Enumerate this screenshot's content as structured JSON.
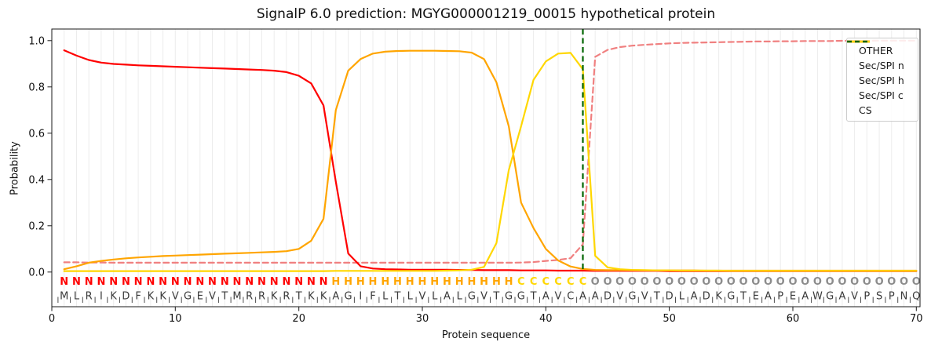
{
  "title": "SignalP 6.0 prediction: MGYG000001219_00015 hypothetical protein",
  "legend": {
    "items": [
      {
        "label": "OTHER",
        "color": "#f08080",
        "dash": true
      },
      {
        "label": "Sec/SPI n",
        "color": "#ff0000",
        "dash": false
      },
      {
        "label": "Sec/SPI h",
        "color": "#ffa500",
        "dash": false
      },
      {
        "label": "Sec/SPI c",
        "color": "#ffd700",
        "dash": false
      },
      {
        "label": "CS",
        "color": "#006400",
        "dash": true
      }
    ]
  },
  "chart_data": {
    "type": "line",
    "title": "SignalP 6.0 prediction: MGYG000001219_00015 hypothetical protein",
    "xlabel": "Protein sequence",
    "ylabel": "Probability",
    "xlim": [
      0,
      70.3
    ],
    "ylim": [
      -0.15,
      1.05
    ],
    "xticks": [
      0,
      10,
      20,
      30,
      40,
      50,
      60,
      70
    ],
    "ytick_labels": [
      "0.0",
      "0.2",
      "0.4",
      "0.6",
      "0.8",
      "1.0"
    ],
    "yticks": [
      0.0,
      0.2,
      0.4,
      0.6,
      0.8,
      1.0
    ],
    "grid": "vertical-per-residue",
    "legend_position": "upper right",
    "x": "positions 1..70",
    "series": [
      {
        "name": "OTHER",
        "color": "#f08080",
        "style": "dashed",
        "values": [
          0.042,
          0.042,
          0.041,
          0.041,
          0.04,
          0.04,
          0.04,
          0.04,
          0.04,
          0.04,
          0.04,
          0.04,
          0.04,
          0.04,
          0.04,
          0.04,
          0.04,
          0.04,
          0.04,
          0.04,
          0.04,
          0.04,
          0.04,
          0.04,
          0.04,
          0.04,
          0.04,
          0.04,
          0.04,
          0.04,
          0.04,
          0.04,
          0.04,
          0.04,
          0.04,
          0.04,
          0.04,
          0.041,
          0.043,
          0.048,
          0.052,
          0.06,
          0.12,
          0.93,
          0.96,
          0.972,
          0.978,
          0.982,
          0.985,
          0.988,
          0.99,
          0.991,
          0.992,
          0.993,
          0.994,
          0.995,
          0.996,
          0.996,
          0.997,
          0.997,
          0.998,
          0.998,
          0.998,
          0.999,
          0.999,
          0.999,
          1.0,
          1.0,
          1.0,
          1.0
        ]
      },
      {
        "name": "Sec/SPI n",
        "color": "#ff0000",
        "style": "solid",
        "values": [
          0.958,
          0.935,
          0.916,
          0.905,
          0.899,
          0.896,
          0.893,
          0.891,
          0.889,
          0.887,
          0.885,
          0.883,
          0.881,
          0.879,
          0.877,
          0.875,
          0.873,
          0.87,
          0.864,
          0.848,
          0.815,
          0.72,
          0.39,
          0.08,
          0.025,
          0.015,
          0.012,
          0.011,
          0.01,
          0.01,
          0.01,
          0.01,
          0.009,
          0.009,
          0.008,
          0.008,
          0.008,
          0.007,
          0.007,
          0.007,
          0.006,
          0.006,
          0.006,
          0.005,
          0.005,
          0.005,
          0.005,
          0.005,
          0.005,
          0.004,
          0.004,
          0.004,
          0.004,
          0.004,
          0.004,
          0.004,
          0.004,
          0.004,
          0.004,
          0.004,
          0.004,
          0.004,
          0.004,
          0.004,
          0.004,
          0.004,
          0.004,
          0.004,
          0.004,
          0.004
        ]
      },
      {
        "name": "Sec/SPI h",
        "color": "#ffa500",
        "style": "solid",
        "values": [
          0.012,
          0.025,
          0.04,
          0.048,
          0.054,
          0.059,
          0.063,
          0.066,
          0.069,
          0.071,
          0.073,
          0.075,
          0.077,
          0.079,
          0.081,
          0.083,
          0.085,
          0.087,
          0.09,
          0.1,
          0.135,
          0.23,
          0.7,
          0.87,
          0.92,
          0.944,
          0.952,
          0.955,
          0.956,
          0.956,
          0.956,
          0.955,
          0.954,
          0.948,
          0.92,
          0.82,
          0.63,
          0.3,
          0.19,
          0.1,
          0.05,
          0.024,
          0.013,
          0.009,
          0.008,
          0.008,
          0.008,
          0.007,
          0.007,
          0.007,
          0.007,
          0.007,
          0.006,
          0.006,
          0.006,
          0.006,
          0.006,
          0.006,
          0.006,
          0.006,
          0.006,
          0.006,
          0.006,
          0.006,
          0.006,
          0.006,
          0.006,
          0.006,
          0.006,
          0.006
        ]
      },
      {
        "name": "Sec/SPI c",
        "color": "#ffd700",
        "style": "solid",
        "values": [
          0.004,
          0.004,
          0.004,
          0.004,
          0.004,
          0.004,
          0.004,
          0.004,
          0.004,
          0.004,
          0.004,
          0.004,
          0.004,
          0.004,
          0.004,
          0.004,
          0.004,
          0.004,
          0.004,
          0.004,
          0.004,
          0.004,
          0.005,
          0.005,
          0.005,
          0.005,
          0.005,
          0.005,
          0.005,
          0.005,
          0.005,
          0.006,
          0.007,
          0.01,
          0.022,
          0.125,
          0.44,
          0.63,
          0.83,
          0.91,
          0.944,
          0.947,
          0.876,
          0.07,
          0.02,
          0.012,
          0.009,
          0.008,
          0.007,
          0.007,
          0.006,
          0.006,
          0.006,
          0.006,
          0.005,
          0.005,
          0.005,
          0.005,
          0.005,
          0.005,
          0.005,
          0.005,
          0.005,
          0.005,
          0.005,
          0.005,
          0.005,
          0.005,
          0.005,
          0.005
        ]
      }
    ],
    "cs_line": {
      "name": "CS",
      "x": 43,
      "color": "#006400",
      "style": "dashed"
    },
    "sequence": "MLRIKDFKKVGEVTMRRKRTKKAGIFLTLVLALGVTGGTAVCAADVGVTDLADKGTEAPEAWGAVPSPNQ",
    "regions": "NNNNNNNNNNNNNNNNNNNNNNHHHHHHHHHHHHHHHCCCCCCOOOOOOOOOOOOOOOOOOOOOOOOOOO",
    "region_colors": {
      "N": "#ff0000",
      "H": "#ffa500",
      "C": "#ffd700",
      "O": "#8c8c8c"
    },
    "sequence_color": "#3a3a3a"
  }
}
